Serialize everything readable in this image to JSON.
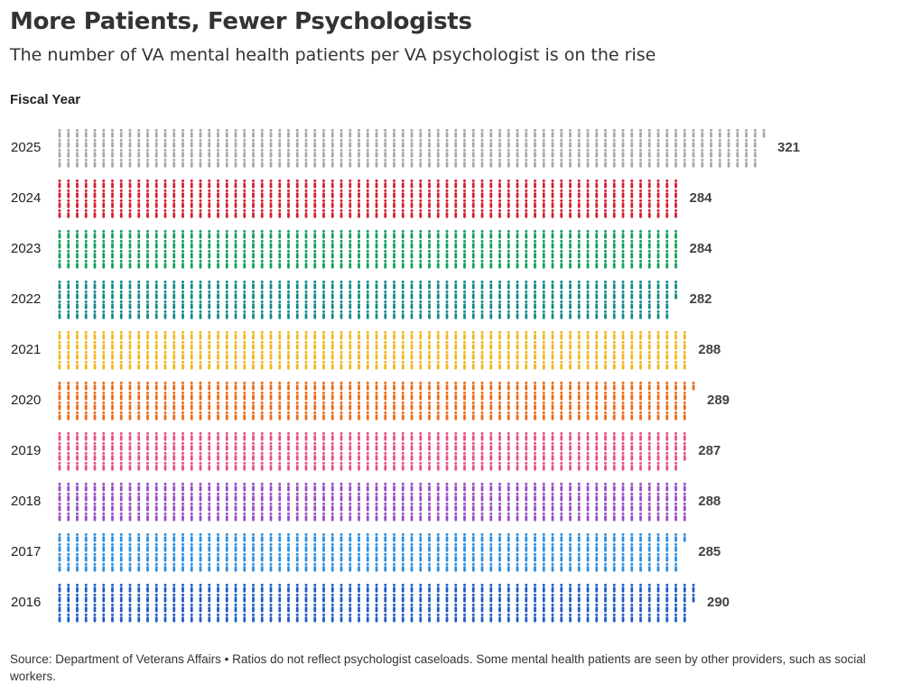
{
  "title": "More Patients, Fewer Psychologists",
  "subtitle": "The number of VA mental health patients per VA psychologist is on the rise",
  "source": "Source: Department of Veterans Affairs • Ratios do not reflect psychologist caseloads. Some mental health patients are seen by other providers, such as social workers.",
  "chart_data": {
    "type": "bar",
    "ylabel": "Fiscal Year",
    "categories": [
      "2025",
      "2024",
      "2023",
      "2022",
      "2021",
      "2020",
      "2019",
      "2018",
      "2017",
      "2016"
    ],
    "values": [
      321,
      284,
      284,
      282,
      288,
      289,
      287,
      288,
      285,
      290
    ],
    "colors": [
      "#a7a9ac",
      "#d42030",
      "#12a05a",
      "#138a86",
      "#f2b61c",
      "#ee6b16",
      "#e84f89",
      "#9a4bc6",
      "#2c8fe0",
      "#1f5bc7"
    ],
    "icon": "person-icon",
    "icon_rows": 4,
    "grid": false
  }
}
